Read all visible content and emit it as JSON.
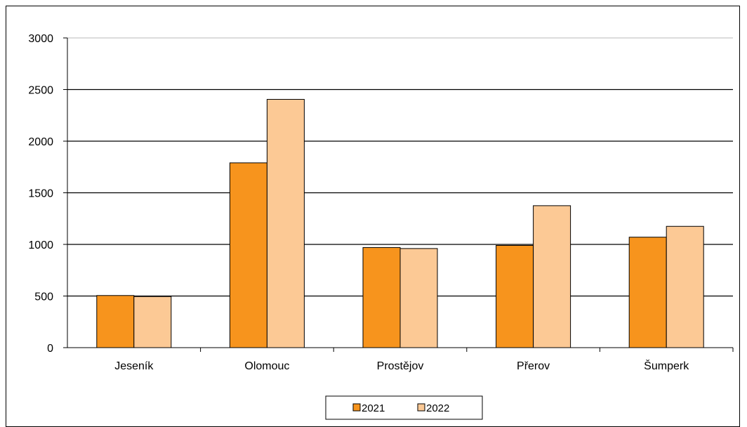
{
  "chart_data": {
    "type": "bar",
    "categories": [
      "Jeseník",
      "Olomouc",
      "Prostějov",
      "Přerov",
      "Šumperk"
    ],
    "series": [
      {
        "name": "2021",
        "values": [
          505,
          1790,
          970,
          990,
          1070
        ],
        "color": "#f7941d"
      },
      {
        "name": "2022",
        "values": [
          495,
          2405,
          960,
          1375,
          1175
        ],
        "color": "#fcc995"
      }
    ],
    "yticks": [
      "0",
      "500",
      "1000",
      "1500",
      "2000",
      "2500",
      "3000"
    ],
    "ylim": [
      0,
      3000
    ],
    "grid": true,
    "legend_position": "bottom-center"
  }
}
